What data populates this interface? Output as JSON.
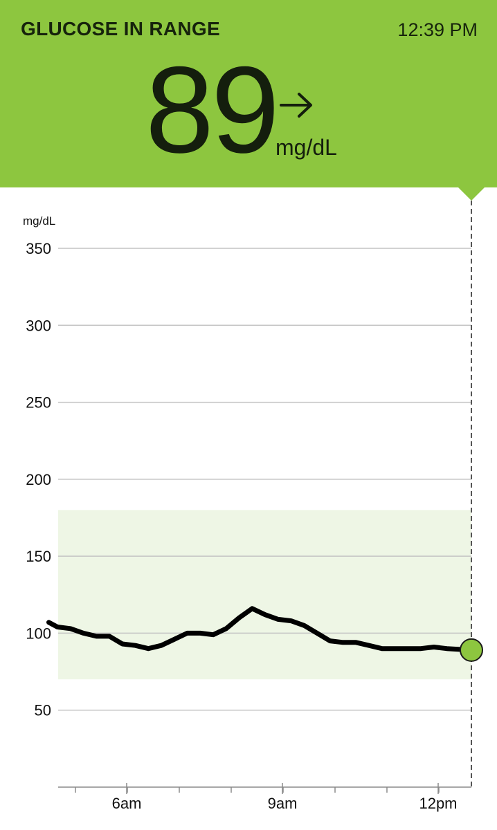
{
  "header": {
    "status": "GLUCOSE IN RANGE",
    "time": "12:39 PM",
    "reading": "89",
    "unit": "mg/dL",
    "trend_icon": "arrow-right-icon",
    "background_color": "#8dc63f"
  },
  "chart_data": {
    "type": "line",
    "ylabel": "mg/dL",
    "y_ticks": [
      350,
      300,
      250,
      200,
      150,
      100,
      50
    ],
    "ylim": [
      0,
      350
    ],
    "x_tick_labels": [
      "6am",
      "9am",
      "12pm"
    ],
    "target_range": [
      70,
      180
    ],
    "target_range_color": "#eef6e5",
    "current_point_color": "#8dc63f",
    "series": [
      {
        "points": [
          [
            "4:30",
            107
          ],
          [
            "4:40",
            104
          ],
          [
            "4:55",
            103
          ],
          [
            "5:10",
            100
          ],
          [
            "5:25",
            98
          ],
          [
            "5:40",
            98
          ],
          [
            "5:55",
            93
          ],
          [
            "6:10",
            92
          ],
          [
            "6:25",
            90
          ],
          [
            "6:40",
            92
          ],
          [
            "6:55",
            96
          ],
          [
            "7:10",
            100
          ],
          [
            "7:25",
            100
          ],
          [
            "7:40",
            99
          ],
          [
            "7:55",
            103
          ],
          [
            "8:10",
            110
          ],
          [
            "8:25",
            116
          ],
          [
            "8:40",
            112
          ],
          [
            "8:55",
            109
          ],
          [
            "9:10",
            108
          ],
          [
            "9:25",
            105
          ],
          [
            "9:40",
            100
          ],
          [
            "9:55",
            95
          ],
          [
            "10:10",
            94
          ],
          [
            "10:25",
            94
          ],
          [
            "10:40",
            92
          ],
          [
            "10:55",
            90
          ],
          [
            "11:10",
            90
          ],
          [
            "11:25",
            90
          ],
          [
            "11:40",
            90
          ],
          [
            "11:55",
            91
          ],
          [
            "12:10",
            90
          ],
          [
            "12:39",
            89
          ]
        ]
      }
    ]
  }
}
